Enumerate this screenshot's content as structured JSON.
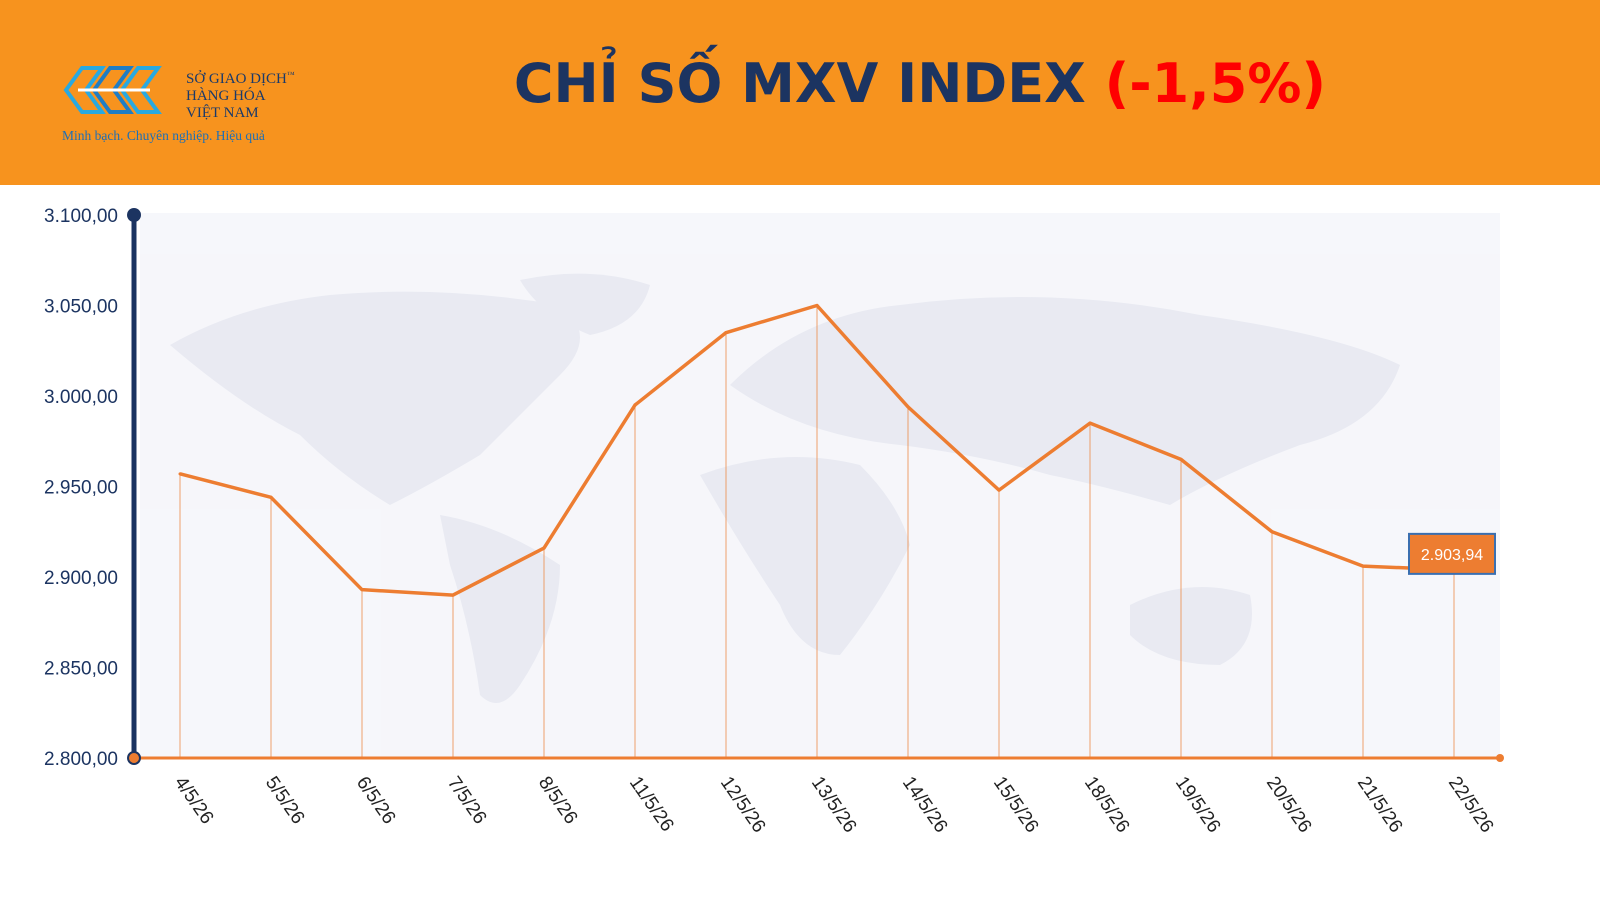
{
  "header": {
    "logo_line1": "SỞ GIAO DỊCH",
    "logo_line2": "HÀNG HÓA",
    "logo_line3": "VIỆT NAM",
    "logo_tm": "™",
    "tagline": "Minh bạch. Chuyên nghiệp. Hiệu quả",
    "title": "CHỈ SỐ MXV INDEX",
    "change": "(-1,5%)"
  },
  "colors": {
    "header_bg": "#f7931e",
    "title": "#1c3461",
    "change": "#ff0000",
    "line": "#ed7d31",
    "axis": "#1c3461",
    "last_label_bg": "#ed7d31"
  },
  "chart_data": {
    "type": "line",
    "categories": [
      "4/5/26",
      "5/5/26",
      "6/5/26",
      "7/5/26",
      "8/5/26",
      "11/5/26",
      "12/5/26",
      "13/5/26",
      "14/5/26",
      "15/5/26",
      "18/5/26",
      "19/5/26",
      "20/5/26",
      "21/5/26",
      "22/5/26"
    ],
    "values": [
      2957,
      2944,
      2893,
      2890,
      2916,
      2995,
      3035,
      3050,
      2994,
      2948,
      2985,
      2965,
      2925,
      2906,
      2903.94
    ],
    "ylim": [
      2800,
      3100
    ],
    "yticks": [
      "2.800,00",
      "2.850,00",
      "2.900,00",
      "2.950,00",
      "3.000,00",
      "3.050,00",
      "3.100,00"
    ],
    "last_label": "2.903,94",
    "grid": false,
    "title": "",
    "xlabel": "",
    "ylabel": ""
  }
}
